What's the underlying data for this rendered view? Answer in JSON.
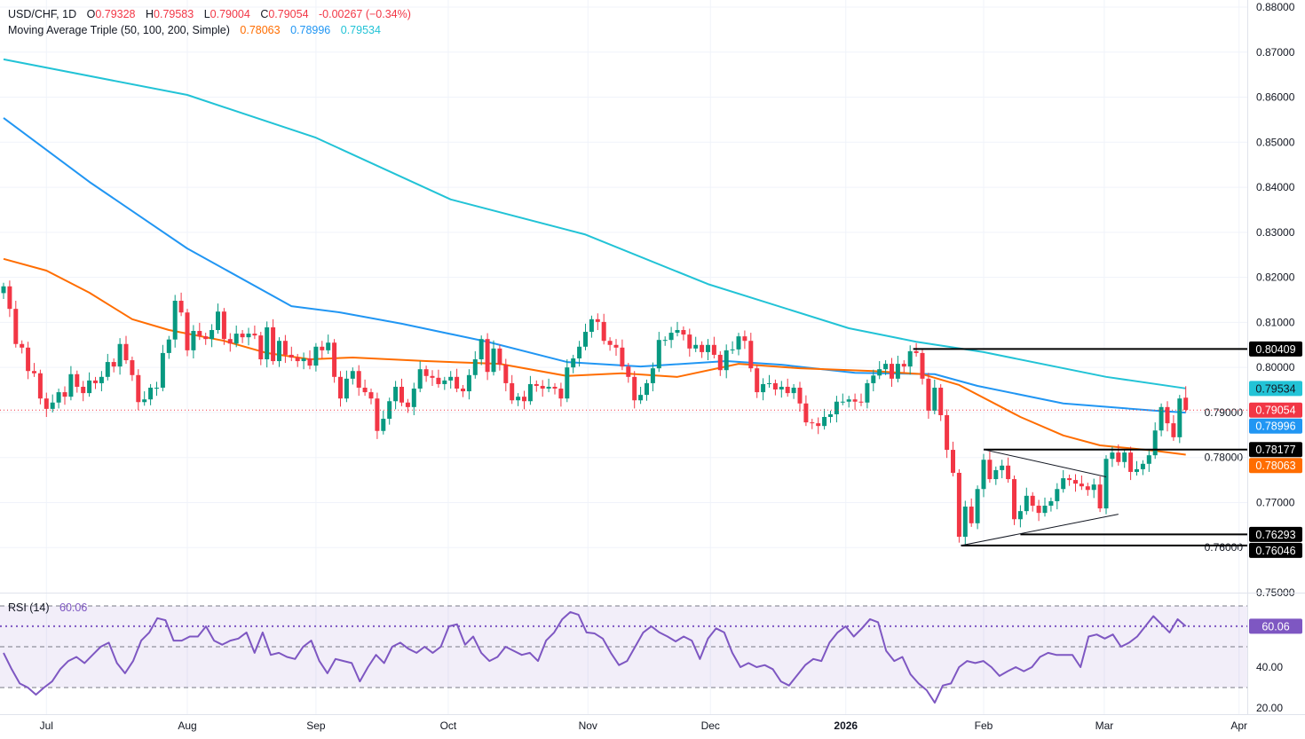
{
  "header": {
    "symbol": "USD/CHF, 1D",
    "o_label": "O",
    "open": "0.79328",
    "h_label": "H",
    "high": "0.79583",
    "l_label": "L",
    "low": "0.79004",
    "c_label": "C",
    "close": "0.79054",
    "change": "-0.00267 (−0.34%)"
  },
  "indicator": {
    "name": "Moving Average Triple (50, 100, 200, Simple)",
    "ma50": "0.78063",
    "ma100": "0.78996",
    "ma200": "0.79534"
  },
  "rsi_legend": {
    "name": "RSI (14)",
    "value": "60.06"
  },
  "colors": {
    "up": "#089981",
    "down": "#f23645",
    "ma50": "#ff6d00",
    "ma100": "#2196f3",
    "ma200": "#22c3d6",
    "rsi": "#7e57c2",
    "level": "#000000"
  },
  "chart_data": {
    "type": "candlestick",
    "title": "USD/CHF, 1D",
    "price_axis": {
      "ylim": [
        0.75,
        0.88
      ],
      "ticks": [
        "0.88000",
        "0.87000",
        "0.86000",
        "0.85000",
        "0.84000",
        "0.83000",
        "0.82000",
        "0.81000",
        "0.80000",
        "0.79000",
        "0.78000",
        "0.77000",
        "0.76000",
        "0.75000"
      ]
    },
    "x_ticks": [
      {
        "label": "Jul",
        "bar": 7
      },
      {
        "label": "Aug",
        "bar": 30
      },
      {
        "label": "Sep",
        "bar": 51
      },
      {
        "label": "Oct",
        "bar": 72.6
      },
      {
        "label": "Nov",
        "bar": 95.4
      },
      {
        "label": "Dec",
        "bar": 115.4
      },
      {
        "label": "2026",
        "bar": 137.5
      },
      {
        "label": "Feb",
        "bar": 160
      },
      {
        "label": "Mar",
        "bar": 179.7
      },
      {
        "label": "Apr",
        "bar": 201.7
      }
    ],
    "closes": [
      0.818,
      0.813,
      0.8052,
      0.8044,
      0.7992,
      0.7987,
      0.7931,
      0.7908,
      0.7922,
      0.7945,
      0.7935,
      0.7985,
      0.7957,
      0.7943,
      0.7971,
      0.7965,
      0.7979,
      0.8012,
      0.8002,
      0.8052,
      0.8016,
      0.7983,
      0.7923,
      0.7929,
      0.7955,
      0.7955,
      0.8032,
      0.8062,
      0.8148,
      0.8122,
      0.8038,
      0.8081,
      0.8069,
      0.8063,
      0.8083,
      0.8124,
      0.8063,
      0.8053,
      0.8075,
      0.8067,
      0.8075,
      0.8071,
      0.8018,
      0.8089,
      0.8014,
      0.8059,
      0.8028,
      0.8022,
      0.8014,
      0.802,
      0.8004,
      0.8046,
      0.8038,
      0.8055,
      0.7979,
      0.7931,
      0.7975,
      0.7992,
      0.7955,
      0.7945,
      0.7931,
      0.7859,
      0.7886,
      0.7925,
      0.7957,
      0.7922,
      0.7912,
      0.7953,
      0.7996,
      0.7981,
      0.7977,
      0.7963,
      0.7971,
      0.7979,
      0.7953,
      0.7947,
      0.7983,
      0.8018,
      0.8063,
      0.799,
      0.8042,
      0.8006,
      0.7965,
      0.7927,
      0.7935,
      0.7925,
      0.7963,
      0.7959,
      0.7953,
      0.7957,
      0.7953,
      0.7931,
      0.8,
      0.802,
      0.8046,
      0.8079,
      0.8107,
      0.8101,
      0.8059,
      0.805,
      0.8044,
      0.8002,
      0.7979,
      0.7927,
      0.7939,
      0.7965,
      0.7998,
      0.8061,
      0.8061,
      0.8077,
      0.8083,
      0.8073,
      0.8042,
      0.805,
      0.8034,
      0.805,
      0.8028,
      0.7994,
      0.8038,
      0.804,
      0.8069,
      0.8059,
      0.7998,
      0.7945,
      0.7963,
      0.7965,
      0.7951,
      0.7957,
      0.7943,
      0.7955,
      0.792,
      0.7878,
      0.7876,
      0.787,
      0.789,
      0.7896,
      0.7924,
      0.7924,
      0.7929,
      0.7924,
      0.7922,
      0.7965,
      0.7982,
      0.7996,
      0.8008,
      0.7975,
      0.8008,
      0.8002,
      0.8036,
      0.8032,
      0.7975,
      0.7904,
      0.7955,
      0.7894,
      0.7817,
      0.7766,
      0.7624,
      0.7691,
      0.7654,
      0.773,
      0.7795,
      0.7752,
      0.7772,
      0.7782,
      0.7752,
      0.7663,
      0.7681,
      0.7715,
      0.7693,
      0.7677,
      0.7693,
      0.7703,
      0.773,
      0.7754,
      0.775,
      0.7742,
      0.7736,
      0.7728,
      0.774,
      0.7687,
      0.7797,
      0.7811,
      0.779,
      0.7811,
      0.7768,
      0.7774,
      0.7786,
      0.7805,
      0.786,
      0.7912,
      0.7876,
      0.7845,
      0.7931,
      0.79054
    ],
    "last_candle": {
      "open": 0.79328,
      "high": 0.79583,
      "low": 0.79004,
      "close": 0.79054
    },
    "series": [
      {
        "name": "SMA 200",
        "points": [
          [
            0,
            0.8684
          ],
          [
            30,
            0.8605
          ],
          [
            51,
            0.851
          ],
          [
            73,
            0.8373
          ],
          [
            95,
            0.8295
          ],
          [
            115,
            0.8185
          ],
          [
            138,
            0.8087
          ],
          [
            149,
            0.8057
          ],
          [
            160,
            0.8034
          ],
          [
            180,
            0.7979
          ],
          [
            193,
            0.79534
          ]
        ]
      },
      {
        "name": "SMA 100",
        "points": [
          [
            0,
            0.8554
          ],
          [
            14,
            0.8412
          ],
          [
            30,
            0.8264
          ],
          [
            47,
            0.8136
          ],
          [
            55,
            0.8122
          ],
          [
            65,
            0.8097
          ],
          [
            79,
            0.8057
          ],
          [
            92,
            0.8012
          ],
          [
            104,
            0.8002
          ],
          [
            118,
            0.8014
          ],
          [
            127,
            0.8006
          ],
          [
            139,
            0.7988
          ],
          [
            152,
            0.7985
          ],
          [
            159,
            0.7959
          ],
          [
            173,
            0.792
          ],
          [
            188,
            0.7904
          ],
          [
            193,
            0.78996
          ]
        ]
      },
      {
        "name": "SMA 50",
        "points": [
          [
            0,
            0.8241
          ],
          [
            7,
            0.8215
          ],
          [
            14,
            0.8166
          ],
          [
            21,
            0.8107
          ],
          [
            27,
            0.8083
          ],
          [
            36,
            0.8059
          ],
          [
            43,
            0.8032
          ],
          [
            50,
            0.8018
          ],
          [
            57,
            0.8022
          ],
          [
            69,
            0.8014
          ],
          [
            81,
            0.8008
          ],
          [
            92,
            0.7981
          ],
          [
            101,
            0.7987
          ],
          [
            110,
            0.7979
          ],
          [
            120,
            0.8008
          ],
          [
            130,
            0.7998
          ],
          [
            142,
            0.7992
          ],
          [
            150,
            0.7985
          ],
          [
            156,
            0.7961
          ],
          [
            166,
            0.789
          ],
          [
            173,
            0.7849
          ],
          [
            179,
            0.7827
          ],
          [
            188,
            0.7815
          ],
          [
            193,
            0.78063
          ]
        ]
      }
    ],
    "levels": [
      {
        "value": 0.80409,
        "label": "0.80409",
        "from_bar": 148.5
      },
      {
        "value": 0.78177,
        "label": "0.78177",
        "from_bar": 160
      },
      {
        "value": 0.76293,
        "label": "0.76293",
        "from_bar": 166
      },
      {
        "value": 0.76046,
        "label": "0.76046",
        "from_bar": 156.3
      }
    ],
    "trendlines": [
      {
        "from": [
          160,
          0.78177
        ],
        "to": [
          180,
          0.7757
        ]
      },
      {
        "from": [
          156.3,
          0.76046
        ],
        "to": [
          182,
          0.7674
        ]
      }
    ],
    "price_labels": [
      {
        "label": "0.79534",
        "value": 0.79534,
        "kind": "ma200"
      },
      {
        "label": "0.79054",
        "value": 0.79054,
        "kind": "last"
      },
      {
        "label": "0.78996",
        "value": 0.78996,
        "kind": "ma100"
      },
      {
        "label": "0.78063",
        "value": 0.78063,
        "kind": "ma50"
      }
    ],
    "rsi": {
      "ylim": [
        15,
        88
      ],
      "ticks": [
        "40.00",
        "20.00"
      ],
      "upper": 70,
      "middle": 50,
      "lower": 30,
      "current_label": "60.06",
      "current": 60.06,
      "values": [
        47,
        39,
        32,
        30,
        26.5,
        30,
        33,
        39,
        43,
        45,
        42,
        46,
        50,
        52,
        42,
        37,
        43,
        53,
        57,
        64,
        63,
        53,
        53,
        55,
        55,
        60,
        53,
        51,
        53,
        54,
        57,
        47,
        57,
        46,
        47,
        45,
        44,
        50,
        53,
        43,
        37,
        44,
        43,
        42,
        33,
        40,
        46,
        42,
        50,
        52,
        49,
        47,
        50,
        47,
        50,
        60,
        61,
        51,
        55,
        47,
        43,
        45,
        50,
        48,
        46,
        47,
        43,
        53,
        57,
        63.5,
        67,
        65.7,
        57,
        56.5,
        54,
        47,
        41,
        43,
        50,
        57,
        60,
        57,
        55,
        52.6,
        55,
        53,
        44,
        54,
        59,
        57,
        47,
        40,
        42,
        40,
        41,
        39,
        33,
        31,
        36,
        41,
        44,
        43,
        52,
        57,
        60,
        55,
        59,
        63.5,
        62,
        48,
        43,
        45,
        36.5,
        32,
        28.7,
        22.6,
        31,
        32,
        40,
        43,
        42,
        43,
        40,
        35.7,
        38,
        40,
        38,
        40,
        45,
        47,
        46,
        46,
        46,
        40,
        55,
        56,
        54,
        56,
        50,
        52,
        55,
        60,
        65,
        61,
        57,
        63.5,
        60.06
      ]
    }
  }
}
